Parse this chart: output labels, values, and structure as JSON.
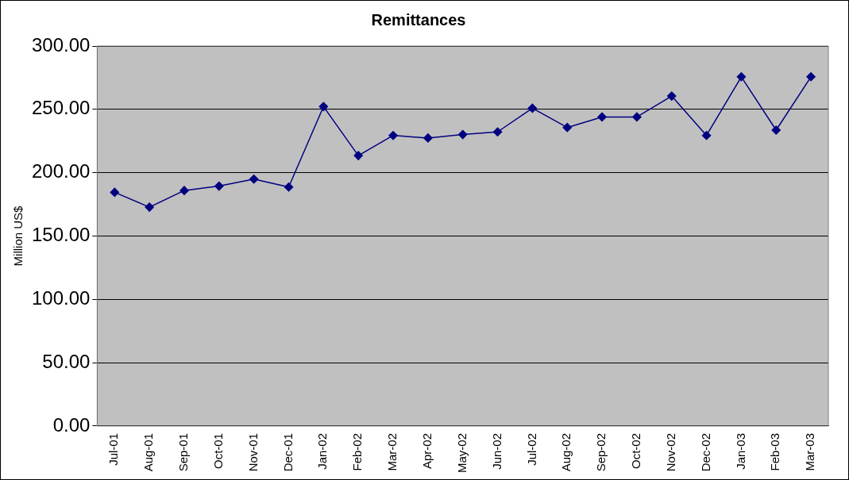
{
  "chart_data": {
    "type": "line",
    "title": "Remittances",
    "ylabel": "Million US$",
    "categories": [
      "Jul-01",
      "Aug-01",
      "Sep-01",
      "Oct-01",
      "Nov-01",
      "Dec-01",
      "Jan-02",
      "Feb-02",
      "Mar-02",
      "Apr-02",
      "May-02",
      "Jun-02",
      "Jul-02",
      "Aug-02",
      "Sep-02",
      "Oct-02",
      "Nov-02",
      "Dec-02",
      "Jan-03",
      "Feb-03",
      "Mar-03"
    ],
    "series": [
      {
        "color": "#000080",
        "values": [
          184.5,
          172.8,
          185.9,
          189.4,
          194.9,
          188.7,
          252.2,
          213.5,
          229.4,
          227.4,
          230.1,
          232.2,
          250.9,
          235.7,
          244,
          244,
          260.5,
          229.4,
          275.7,
          233.6,
          275.7
        ]
      }
    ],
    "ylim": [
      0,
      300
    ],
    "yticks": [
      {
        "value": 0,
        "label": "0.00"
      },
      {
        "value": 50,
        "label": "50.00"
      },
      {
        "value": 100,
        "label": "100.00"
      },
      {
        "value": 150,
        "label": "150.00"
      },
      {
        "value": 200,
        "label": "200.00"
      },
      {
        "value": 250,
        "label": "250.00"
      },
      {
        "value": 300,
        "label": "300.00"
      }
    ],
    "grid": "y",
    "legend": false,
    "marker": "diamond",
    "line_style": "solid"
  }
}
